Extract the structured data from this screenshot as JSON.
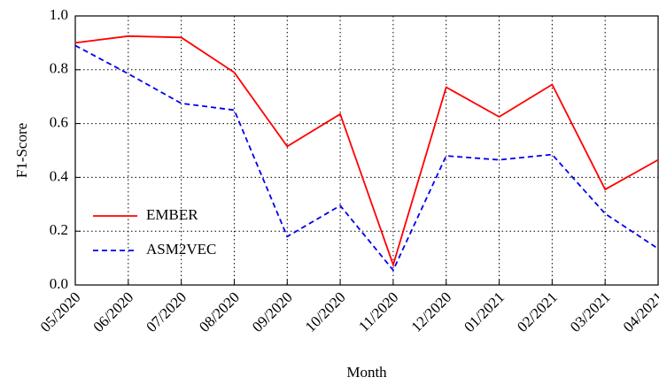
{
  "chart_data": {
    "type": "line",
    "x_label": "Month",
    "y_label": "F1-Score",
    "categories": [
      "05/2020",
      "06/2020",
      "07/2020",
      "08/2020",
      "09/2020",
      "10/2020",
      "11/2020",
      "12/2020",
      "01/2021",
      "02/2021",
      "03/2021",
      "04/2021"
    ],
    "series": [
      {
        "name": "EMBER",
        "color": "#ff0000",
        "dash": "solid",
        "values": [
          0.9,
          0.925,
          0.92,
          0.79,
          0.515,
          0.635,
          0.075,
          0.735,
          0.625,
          0.745,
          0.355,
          0.465
        ]
      },
      {
        "name": "ASM2VEC",
        "color": "#0000ee",
        "dash": "dashed",
        "values": [
          0.89,
          0.785,
          0.675,
          0.65,
          0.18,
          0.295,
          0.055,
          0.48,
          0.465,
          0.485,
          0.265,
          0.135
        ]
      }
    ],
    "ylim": [
      0,
      1
    ],
    "yticks": [
      {
        "value": 0,
        "label": "0.0"
      },
      0.2,
      0.4,
      0.6,
      0.8,
      {
        "value": 1,
        "label": "1.0"
      }
    ],
    "grid": true,
    "legend": "lower left"
  }
}
